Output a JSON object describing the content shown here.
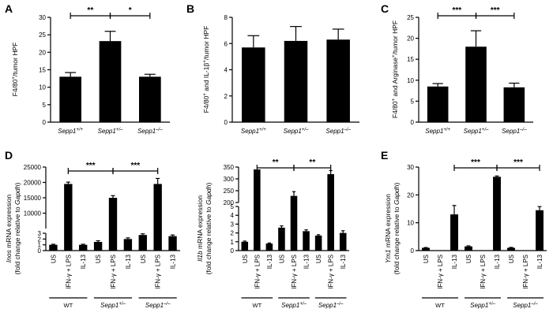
{
  "chart_data": [
    {
      "panel": "A",
      "type": "bar",
      "ylabel": "F4/80⁺/tumor HPF",
      "categories": [
        "Sepp1+/+",
        "Sepp1+/–",
        "Sepp1–/–"
      ],
      "values": [
        13,
        23.2,
        13
      ],
      "errors": [
        1.2,
        2.8,
        0.7
      ],
      "ylim": [
        0,
        30
      ],
      "yticks": [
        "0",
        "5",
        "10",
        "15",
        "20",
        "25",
        "30"
      ],
      "sig": [
        {
          "from": 0,
          "to": 1,
          "label": "**"
        },
        {
          "from": 1,
          "to": 2,
          "label": "*"
        }
      ]
    },
    {
      "panel": "B",
      "type": "bar",
      "ylabel": "F4/80⁺ and IL-1β⁺/tumor HPF",
      "categories": [
        "Sepp1+/+",
        "Sepp1+/–",
        "Sepp1–/–"
      ],
      "values": [
        5.7,
        6.2,
        6.3
      ],
      "errors": [
        0.9,
        1.1,
        0.8
      ],
      "ylim": [
        0,
        8
      ],
      "yticks": [
        "0",
        "2",
        "4",
        "6",
        "8"
      ],
      "sig": []
    },
    {
      "panel": "C",
      "type": "bar",
      "ylabel": "F4/80⁺ and Arginase⁺/tumor HPF",
      "categories": [
        "Sepp1+/+",
        "Sepp1+/–",
        "Sepp1–/–"
      ],
      "values": [
        8.5,
        18,
        8.3
      ],
      "errors": [
        0.7,
        3.8,
        1.0
      ],
      "ylim": [
        0,
        25
      ],
      "yticks": [
        "0",
        "5",
        "10",
        "15",
        "20",
        "25"
      ],
      "sig": [
        {
          "from": 0,
          "to": 1,
          "label": "***"
        },
        {
          "from": 1,
          "to": 2,
          "label": "***"
        }
      ]
    },
    {
      "panel": "D",
      "type": "bar",
      "gene": "Inos",
      "ylabel": "Inos mRNA expression",
      "ylabel2": "(fold change relative to Gapdh)",
      "categories": [
        "US",
        "IFN-γ + LPS",
        "IL-13",
        "US",
        "IFN-γ + LPS",
        "IL-13",
        "US",
        "IFN-γ + LPS",
        "IL-13"
      ],
      "values": [
        1,
        19500,
        1,
        1.5,
        15000,
        2,
        2.7,
        19500,
        2.5
      ],
      "errors": [
        0.1,
        600,
        0.1,
        0.2,
        700,
        0.2,
        0.2,
        1800,
        0.2
      ],
      "lower": {
        "range": [
          0,
          3
        ],
        "ticks": [
          "0",
          "1",
          "2",
          "3"
        ]
      },
      "upper": {
        "range": [
          5000,
          25000
        ],
        "ticks": [
          "10000",
          "15000",
          "20000",
          "25000"
        ]
      },
      "groups": [
        "WT",
        "Sepp1+/–",
        "Sepp1–/–"
      ],
      "sig": [
        {
          "from": 1,
          "to": 4,
          "label": "***"
        },
        {
          "from": 4,
          "to": 7,
          "label": "***"
        }
      ]
    },
    {
      "panel": "D2",
      "type": "bar",
      "gene": "Il1b",
      "ylabel": "Il1b mRNA expression",
      "ylabel2": "(fold change relative to Gapdh)",
      "categories": [
        "US",
        "IFN-γ + LPS",
        "IL-13",
        "US",
        "IFN-γ + LPS",
        "IL-13",
        "US",
        "IFN-γ + LPS",
        "IL-13"
      ],
      "values": [
        1,
        340,
        0.8,
        2.6,
        228,
        2.2,
        1.7,
        320,
        2
      ],
      "errors": [
        0.08,
        0,
        0.06,
        0.2,
        18,
        0.15,
        0.1,
        15,
        0.25
      ],
      "lower": {
        "range": [
          0,
          5
        ],
        "ticks": [
          "0",
          "1",
          "2",
          "3",
          "4",
          "5"
        ]
      },
      "upper": {
        "range": [
          200,
          350
        ],
        "ticks": [
          "200",
          "250",
          "300",
          "350"
        ]
      },
      "groups": [
        "WT",
        "Sepp1+/–",
        "Sepp1–/–"
      ],
      "sig": [
        {
          "from": 1,
          "to": 4,
          "label": "**"
        },
        {
          "from": 4,
          "to": 7,
          "label": "**"
        }
      ]
    },
    {
      "panel": "E",
      "type": "bar",
      "gene": "Ym1",
      "ylabel": "Ym1 mRNA expression",
      "ylabel2": "(fold change relative to Gapdh)",
      "categories": [
        "US",
        "IFN-γ + LPS",
        "IL-13",
        "US",
        "IFN-γ + LPS",
        "IL-13",
        "US",
        "IFN-γ + LPS",
        "IL-13"
      ],
      "values": [
        1,
        0.1,
        13,
        1.5,
        0.1,
        26.5,
        1,
        0.1,
        14.5
      ],
      "errors": [
        0.1,
        0,
        3.2,
        0.2,
        0,
        0.3,
        0.15,
        0,
        1.3
      ],
      "ylim": [
        0,
        30
      ],
      "yticks": [
        "0",
        "10",
        "20",
        "30"
      ],
      "groups": [
        "WT",
        "Sepp1+/–",
        "Sepp1–/–"
      ],
      "sig": [
        {
          "from": 2,
          "to": 5,
          "label": "***"
        },
        {
          "from": 5,
          "to": 8,
          "label": "***"
        }
      ]
    }
  ]
}
